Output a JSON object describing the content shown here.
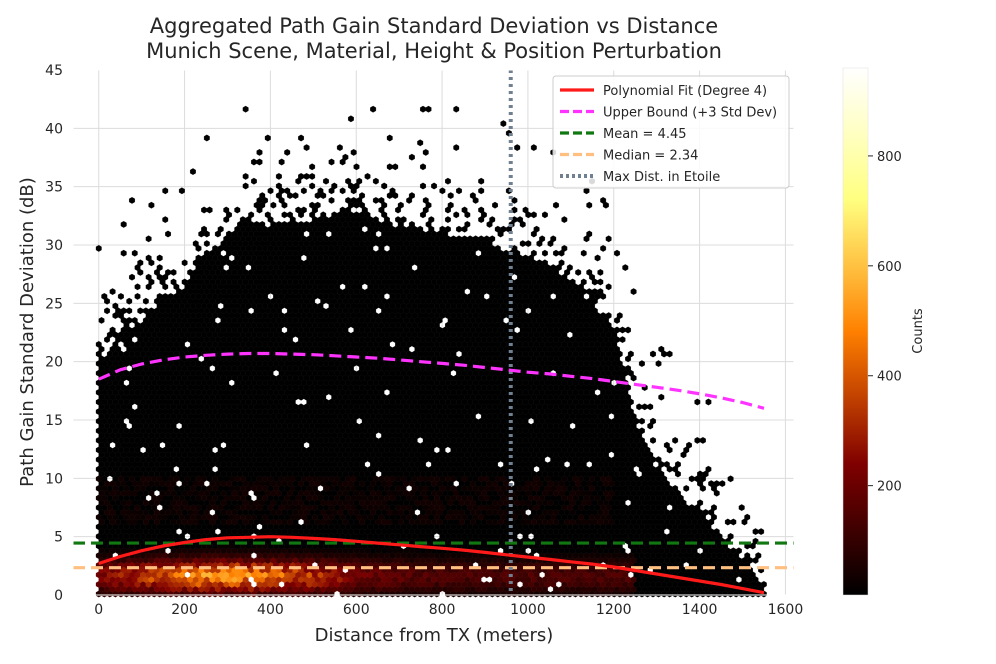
{
  "chart_data": {
    "type": "heatmap",
    "subtype": "hexbin",
    "title": "Aggregated Path Gain Standard Deviation vs Distance",
    "subtitle": "Munich Scene, Material, Height & Position Perturbation",
    "xlabel": "Distance from TX (meters)",
    "ylabel": "Path Gain Standard Deviation (dB)",
    "xlim": [
      -60,
      1620
    ],
    "ylim": [
      0,
      45
    ],
    "xticks": [
      0,
      200,
      400,
      600,
      800,
      1000,
      1200,
      1400,
      1600
    ],
    "yticks": [
      0,
      5,
      10,
      15,
      20,
      25,
      30,
      35,
      40,
      45
    ],
    "grid": true,
    "colorbar": {
      "label": "Counts",
      "colormap": "afmhot",
      "range": [
        1,
        960
      ],
      "ticks": [
        200,
        400,
        600,
        800
      ]
    },
    "density_envelope": {
      "x": [
        0,
        50,
        100,
        150,
        200,
        250,
        300,
        400,
        500,
        600,
        700,
        800,
        900,
        960,
        1000,
        1050,
        1100,
        1150,
        1200,
        1250,
        1300,
        1350,
        1400,
        1450,
        1500,
        1550
      ],
      "upper_y": [
        22,
        24.5,
        25.5,
        27.5,
        28.5,
        31,
        33,
        34,
        34,
        35,
        33.5,
        33,
        32,
        31.5,
        31,
        30.5,
        29,
        27,
        25,
        17,
        13,
        11,
        9,
        7,
        5,
        3
      ]
    },
    "series": [
      {
        "name": "Polynomial Fit (Degree 4)",
        "style": "solid",
        "color": "#ff1a1a",
        "x": [
          0,
          50,
          100,
          150,
          200,
          250,
          300,
          350,
          400,
          450,
          500,
          550,
          600,
          650,
          700,
          750,
          800,
          850,
          900,
          950,
          1000,
          1050,
          1100,
          1150,
          1200,
          1250,
          1300,
          1350,
          1400,
          1450,
          1500,
          1550
        ],
        "y": [
          2.7,
          3.3,
          3.8,
          4.2,
          4.5,
          4.75,
          4.9,
          4.95,
          5.0,
          4.95,
          4.85,
          4.75,
          4.6,
          4.45,
          4.3,
          4.15,
          4.0,
          3.85,
          3.65,
          3.45,
          3.25,
          3.05,
          2.85,
          2.65,
          2.4,
          2.1,
          1.8,
          1.5,
          1.2,
          0.9,
          0.55,
          0.2
        ]
      },
      {
        "name": "Upper Bound (+3 Std Dev)",
        "style": "dashed",
        "color": "#ff33ff",
        "x": [
          0,
          50,
          100,
          150,
          200,
          250,
          300,
          350,
          400,
          450,
          500,
          550,
          600,
          650,
          700,
          750,
          800,
          850,
          900,
          950,
          1000,
          1050,
          1100,
          1150,
          1200,
          1250,
          1300,
          1350,
          1400,
          1450,
          1500,
          1550
        ],
        "y": [
          18.5,
          19.3,
          19.8,
          20.15,
          20.4,
          20.55,
          20.65,
          20.7,
          20.7,
          20.65,
          20.6,
          20.5,
          20.4,
          20.3,
          20.15,
          20.0,
          19.85,
          19.7,
          19.5,
          19.3,
          19.1,
          18.95,
          18.75,
          18.55,
          18.3,
          18.05,
          17.8,
          17.55,
          17.25,
          16.9,
          16.5,
          16.0
        ]
      }
    ],
    "reference_lines": [
      {
        "name": "Mean = 4.45",
        "orientation": "horizontal",
        "value": 4.45,
        "style": "dashed",
        "color": "#117711"
      },
      {
        "name": "Median = 2.34",
        "orientation": "horizontal",
        "value": 2.34,
        "style": "dashed",
        "color": "#ffbf80"
      },
      {
        "name": "Max Dist. in Etoile",
        "orientation": "vertical",
        "value": 960,
        "style": "dotted",
        "color": "#708090"
      }
    ],
    "legend": {
      "position": "top-right"
    }
  }
}
